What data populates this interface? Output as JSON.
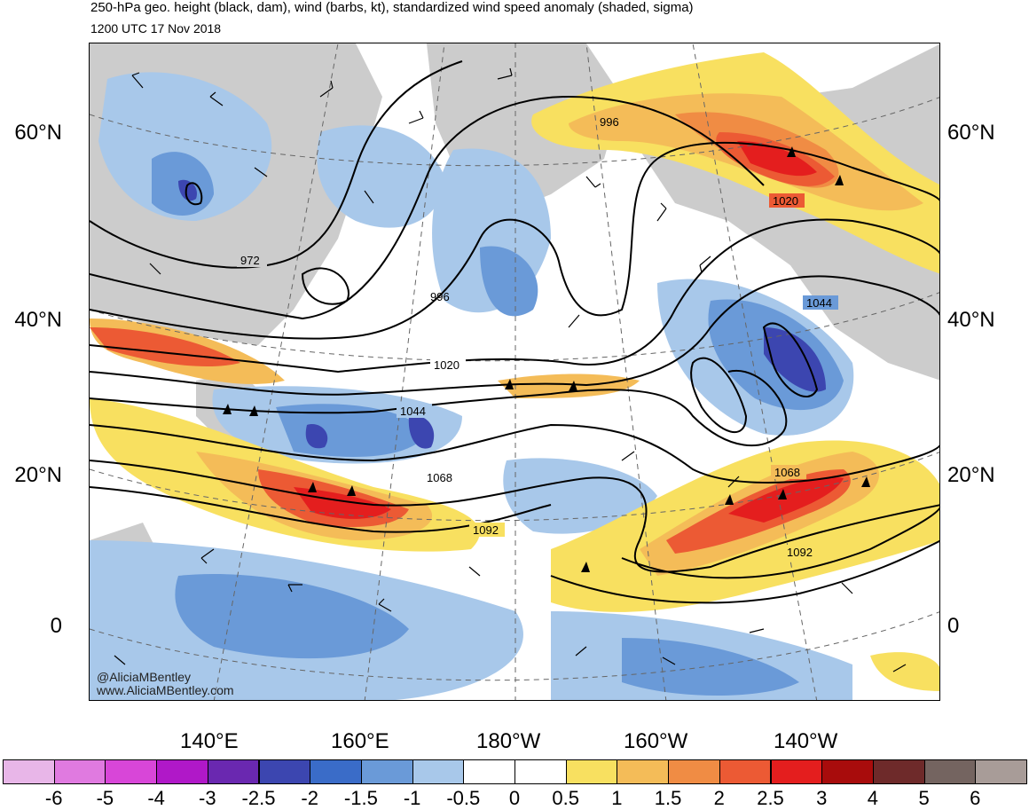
{
  "header": {
    "title": "250-hPa geo. height (black, dam), wind (barbs, kt), standardized wind speed anomaly (shaded, sigma)",
    "valid_time": "1200 UTC 17 Nov 2018"
  },
  "axes": {
    "lat_labels": [
      "60°N",
      "40°N",
      "20°N",
      "0"
    ],
    "lon_labels": [
      "140°E",
      "160°E",
      "180°W",
      "160°W",
      "140°W"
    ]
  },
  "contours": {
    "labels": [
      "996",
      "1020",
      "972",
      "996",
      "1020",
      "1044",
      "1044",
      "1068",
      "1068",
      "1092",
      "1092"
    ]
  },
  "credit": {
    "handle": "@AliciaMBentley",
    "website": "www.AliciaMBentley.com"
  },
  "colorbar": {
    "labels": [
      "-6",
      "-5",
      "-4",
      "-3",
      "-2.5",
      "-2",
      "-1.5",
      "-1",
      "-0.5",
      "0",
      "0.5",
      "1",
      "1.5",
      "2",
      "2.5",
      "3",
      "4",
      "5",
      "6"
    ],
    "colors": [
      "#e8b6e8",
      "#e07ae0",
      "#d846d8",
      "#b018c8",
      "#6a28b0",
      "#3c46b0",
      "#3a6cc8",
      "#6a9ad8",
      "#a8c8ea",
      "#ffffff",
      "#ffffff",
      "#f8e060",
      "#f4bc58",
      "#f08c44",
      "#ec5a34",
      "#e41e1e",
      "#a80c0c",
      "#6e2a2a",
      "#746460",
      "#a89c98"
    ]
  },
  "colors": {
    "land": "#cccccc",
    "anomaly_positive_strong": "#e41e1e",
    "anomaly_negative_strong": "#3c46b0"
  }
}
